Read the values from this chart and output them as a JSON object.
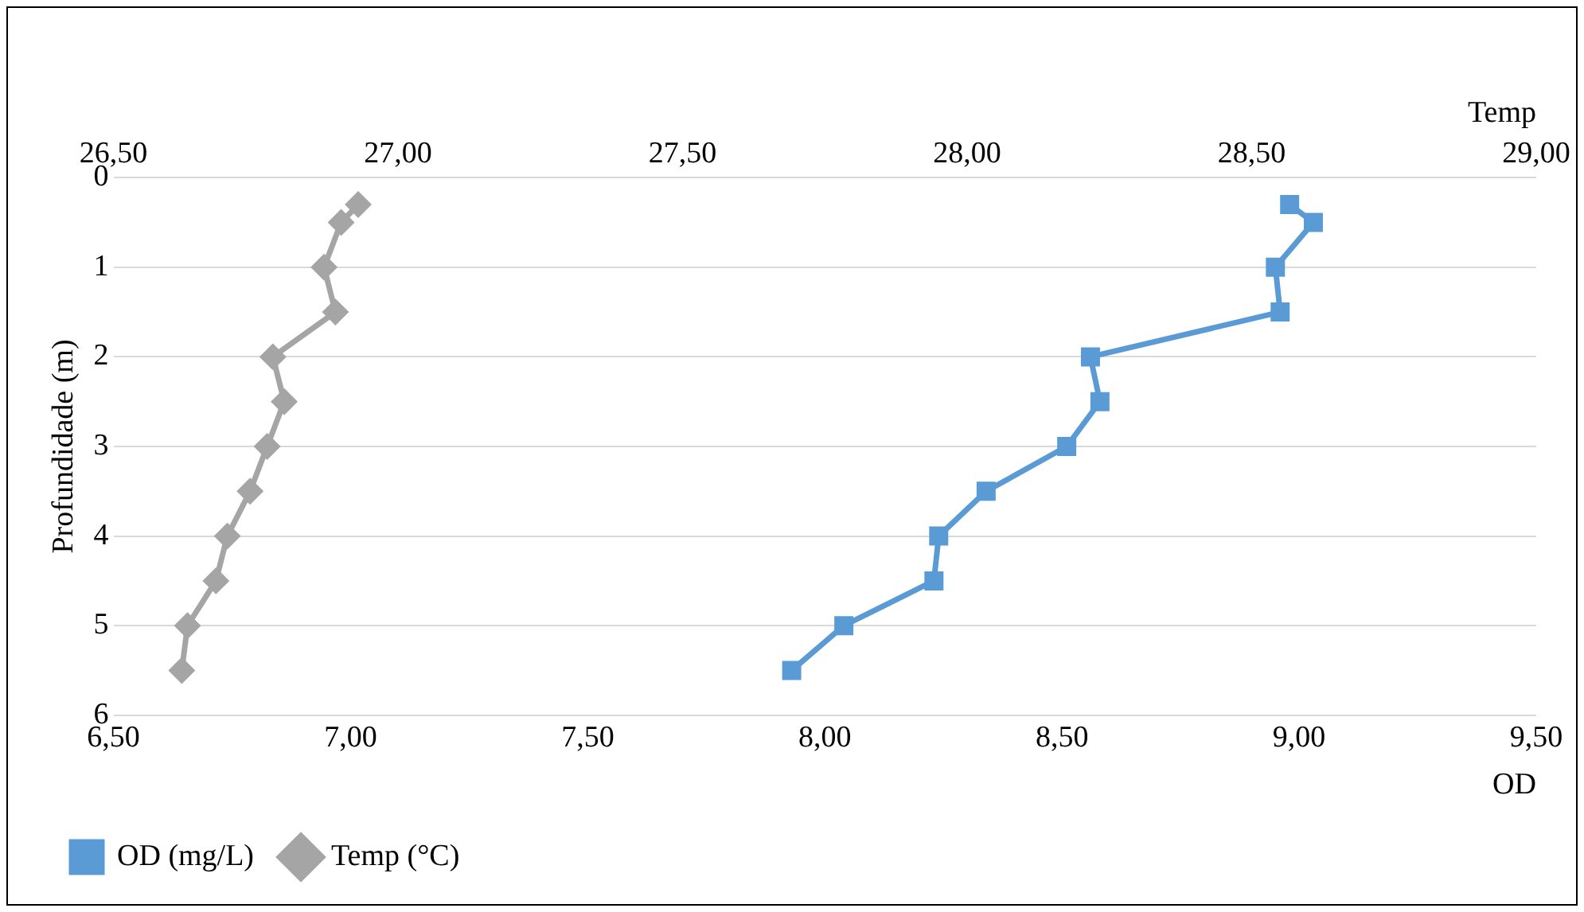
{
  "chart_data": {
    "type": "line",
    "xlabel": "OD",
    "x2label": "Temp",
    "ylabel": "Profundidade (m)",
    "xlim": [
      6.5,
      9.5
    ],
    "xticks": [
      {
        "value": 6.5,
        "label": "6,50"
      },
      {
        "value": 7,
        "label": "7,00"
      },
      {
        "value": 7.5,
        "label": "7,50"
      },
      {
        "value": 8,
        "label": "8,00"
      },
      {
        "value": 8.5,
        "label": "8,50"
      },
      {
        "value": 9,
        "label": "9,00"
      },
      {
        "value": 9.5,
        "label": "9,50"
      }
    ],
    "x2lim": [
      26.5,
      29
    ],
    "x2ticks": [
      {
        "value": 26.5,
        "label": "26,50"
      },
      {
        "value": 27,
        "label": "27,00"
      },
      {
        "value": 27.5,
        "label": "27,50"
      },
      {
        "value": 28,
        "label": "28,00"
      },
      {
        "value": 28.5,
        "label": "28,50"
      },
      {
        "value": 29,
        "label": "29,00"
      }
    ],
    "ylim": [
      6,
      0
    ],
    "yticks": [
      0,
      1,
      2,
      3,
      4,
      5,
      6
    ],
    "grid": "y",
    "legend": "bottom left",
    "series": [
      {
        "name": "OD (mg/L)",
        "color": "#5b9bd5",
        "marker": "square",
        "x": [
          8.98,
          9.03,
          8.95,
          8.96,
          8.56,
          8.58,
          8.51,
          8.34,
          8.24,
          8.23,
          8.04,
          7.93
        ],
        "values": [
          0.3,
          0.5,
          1,
          1.5,
          2,
          2.5,
          3,
          3.5,
          4,
          4.5,
          5,
          5.5
        ]
      },
      {
        "name": "Temp (°C)",
        "color": "#a5a5a5",
        "marker": "diamond",
        "axis": "x2",
        "x": [
          26.93,
          26.9,
          26.87,
          26.89,
          26.78,
          26.8,
          26.77,
          26.74,
          26.7,
          26.68,
          26.63,
          26.62
        ],
        "values": [
          0.3,
          0.5,
          1,
          1.5,
          2,
          2.5,
          3,
          3.5,
          4,
          4.5,
          5,
          5.5
        ]
      }
    ]
  }
}
